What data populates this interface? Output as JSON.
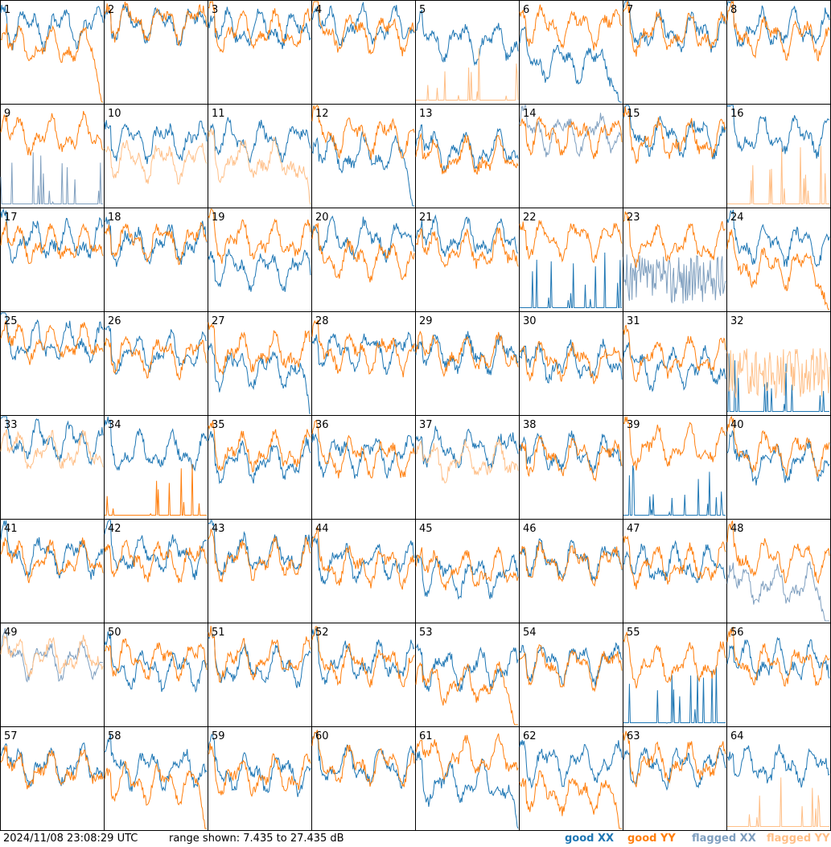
{
  "chart_data": {
    "type": "line",
    "layout": "8x8 small multiples",
    "ylim": [
      7.435,
      27.435
    ],
    "y_unit": "dB",
    "panel_labels": [
      "1",
      "2",
      "3",
      "4",
      "5",
      "6",
      "7",
      "8",
      "9",
      "10",
      "11",
      "12",
      "13",
      "14",
      "15",
      "16",
      "17",
      "18",
      "19",
      "20",
      "21",
      "22",
      "23",
      "24",
      "25",
      "26",
      "27",
      "28",
      "29",
      "30",
      "31",
      "32",
      "33",
      "34",
      "35",
      "36",
      "37",
      "38",
      "39",
      "40",
      "41",
      "42",
      "43",
      "44",
      "45",
      "46",
      "47",
      "48",
      "49",
      "50",
      "51",
      "52",
      "53",
      "54",
      "55",
      "56",
      "57",
      "58",
      "59",
      "60",
      "61",
      "62",
      "63",
      "64"
    ],
    "series_styles": {
      "good_xx": {
        "label": "good XX",
        "color": "#1f77b4"
      },
      "good_yy": {
        "label": "good YY",
        "color": "#ff7f0e"
      },
      "flagged_xx": {
        "label": "flagged XX",
        "color": "#7f9fbf"
      },
      "flagged_yy": {
        "label": "flagged YY",
        "color": "#ffbf87"
      }
    },
    "panels": [
      {
        "xx": "good",
        "yy": "good",
        "xx_level": 0.75,
        "yy_level": 0.55,
        "yy_shape": "dropoff"
      },
      {
        "xx": "good",
        "yy": "good",
        "xx_level": 0.78,
        "yy_level": 0.8
      },
      {
        "xx": "good",
        "yy": "good",
        "xx_level": 0.72,
        "yy_level": 0.7
      },
      {
        "xx": "good",
        "yy": "good",
        "xx_level": 0.75,
        "yy_level": 0.7
      },
      {
        "xx": "good",
        "yy": "flagged",
        "xx_level": 0.6,
        "yy_level": 0.1,
        "yy_shape": "spikes"
      },
      {
        "xx": "good",
        "yy": "good",
        "xx_level": 0.4,
        "yy_level": 0.75,
        "xx_shape": "dropoff"
      },
      {
        "xx": "good",
        "yy": "good",
        "xx_level": 0.7,
        "yy_level": 0.68
      },
      {
        "xx": "good",
        "yy": "good",
        "xx_level": 0.72,
        "yy_level": 0.65
      },
      {
        "xx": "flagged",
        "yy": "good",
        "xx_level": 0.15,
        "yy_level": 0.7,
        "xx_shape": "spikes"
      },
      {
        "xx": "good",
        "yy": "flagged",
        "xx_level": 0.65,
        "yy_level": 0.45
      },
      {
        "xx": "good",
        "yy": "flagged",
        "xx_level": 0.65,
        "yy_level": 0.45,
        "yy_shape": "dropoff"
      },
      {
        "xx": "good",
        "yy": "good",
        "xx_level": 0.5,
        "yy_level": 0.7,
        "xx_shape": "dropoff"
      },
      {
        "xx": "good",
        "yy": "good",
        "xx_level": 0.55,
        "yy_level": 0.48
      },
      {
        "xx": "flagged",
        "yy": "good",
        "xx_level": 0.72,
        "yy_level": 0.7
      },
      {
        "xx": "good",
        "yy": "good",
        "xx_level": 0.7,
        "yy_level": 0.65
      },
      {
        "xx": "good",
        "yy": "flagged",
        "xx_level": 0.7,
        "yy_level": 0.1,
        "yy_shape": "spikes"
      },
      {
        "xx": "good",
        "yy": "good",
        "xx_level": 0.68,
        "yy_level": 0.65
      },
      {
        "xx": "good",
        "yy": "good",
        "xx_level": 0.65,
        "yy_level": 0.68
      },
      {
        "xx": "good",
        "yy": "good",
        "xx_level": 0.4,
        "yy_level": 0.68
      },
      {
        "xx": "good",
        "yy": "good",
        "xx_level": 0.7,
        "yy_level": 0.5
      },
      {
        "xx": "good",
        "yy": "good",
        "xx_level": 0.7,
        "yy_level": 0.58
      },
      {
        "xx": "good",
        "yy": "good",
        "xx_level": 0.05,
        "yy_level": 0.7,
        "xx_shape": "spikes"
      },
      {
        "xx": "flagged",
        "yy": "good",
        "xx_level": 0.3,
        "yy_level": 0.65,
        "xx_shape": "noise"
      },
      {
        "xx": "good",
        "yy": "good",
        "xx_level": 0.65,
        "yy_level": 0.42,
        "yy_shape": "dropoff"
      },
      {
        "xx": "good",
        "yy": "good",
        "xx_level": 0.7,
        "yy_level": 0.7
      },
      {
        "xx": "good",
        "yy": "good",
        "xx_level": 0.6,
        "yy_level": 0.58
      },
      {
        "xx": "good",
        "yy": "good",
        "xx_level": 0.45,
        "yy_level": 0.6,
        "xx_shape": "dropoff"
      },
      {
        "xx": "good",
        "yy": "good",
        "xx_level": 0.62,
        "yy_level": 0.6
      },
      {
        "xx": "good",
        "yy": "good",
        "xx_level": 0.58,
        "yy_level": 0.58
      },
      {
        "xx": "good",
        "yy": "good",
        "xx_level": 0.5,
        "yy_level": 0.52
      },
      {
        "xx": "good",
        "yy": "good",
        "xx_level": 0.45,
        "yy_level": 0.55
      },
      {
        "xx": "good",
        "yy": "flagged",
        "xx_level": 0.05,
        "yy_level": 0.4,
        "xx_shape": "spikes",
        "yy_shape": "noise"
      },
      {
        "xx": "good",
        "yy": "flagged",
        "xx_level": 0.75,
        "yy_level": 0.65
      },
      {
        "xx": "good",
        "yy": "good",
        "xx_level": 0.65,
        "yy_level": 0.1,
        "yy_shape": "spikes"
      },
      {
        "xx": "good",
        "yy": "good",
        "xx_level": 0.55,
        "yy_level": 0.65
      },
      {
        "xx": "good",
        "yy": "good",
        "xx_level": 0.62,
        "yy_level": 0.6
      },
      {
        "xx": "good",
        "yy": "flagged",
        "xx_level": 0.68,
        "yy_level": 0.55
      },
      {
        "xx": "good",
        "yy": "good",
        "xx_level": 0.62,
        "yy_level": 0.6
      },
      {
        "xx": "good",
        "yy": "good",
        "xx_level": 0.05,
        "yy_level": 0.7,
        "xx_shape": "spikes"
      },
      {
        "xx": "good",
        "yy": "good",
        "xx_level": 0.55,
        "yy_level": 0.65
      },
      {
        "xx": "good",
        "yy": "good",
        "xx_level": 0.65,
        "yy_level": 0.6
      },
      {
        "xx": "good",
        "yy": "good",
        "xx_level": 0.65,
        "yy_level": 0.6
      },
      {
        "xx": "good",
        "yy": "good",
        "xx_level": 0.65,
        "yy_level": 0.6
      },
      {
        "xx": "good",
        "yy": "good",
        "xx_level": 0.58,
        "yy_level": 0.55
      },
      {
        "xx": "good",
        "yy": "good",
        "xx_level": 0.45,
        "yy_level": 0.5
      },
      {
        "xx": "good",
        "yy": "good",
        "xx_level": 0.6,
        "yy_level": 0.58
      },
      {
        "xx": "good",
        "yy": "good",
        "xx_level": 0.55,
        "yy_level": 0.55
      },
      {
        "xx": "flagged",
        "yy": "good",
        "xx_level": 0.35,
        "yy_level": 0.62,
        "xx_shape": "dropoff"
      },
      {
        "xx": "flagged",
        "yy": "flagged",
        "xx_level": 0.65,
        "yy_level": 0.68
      },
      {
        "xx": "good",
        "yy": "good",
        "xx_level": 0.55,
        "yy_level": 0.65
      },
      {
        "xx": "good",
        "yy": "good",
        "xx_level": 0.58,
        "yy_level": 0.65
      },
      {
        "xx": "good",
        "yy": "good",
        "xx_level": 0.62,
        "yy_level": 0.6
      },
      {
        "xx": "good",
        "yy": "good",
        "xx_level": 0.55,
        "yy_level": 0.4,
        "yy_shape": "dropoff"
      },
      {
        "xx": "good",
        "yy": "good",
        "xx_level": 0.62,
        "yy_level": 0.58
      },
      {
        "xx": "good",
        "yy": "good",
        "xx_level": 0.1,
        "yy_level": 0.6,
        "xx_shape": "spikes"
      },
      {
        "xx": "good",
        "yy": "good",
        "xx_level": 0.62,
        "yy_level": 0.6
      },
      {
        "xx": "good",
        "yy": "good",
        "xx_level": 0.62,
        "yy_level": 0.58
      },
      {
        "xx": "good",
        "yy": "good",
        "xx_level": 0.6,
        "yy_level": 0.45,
        "yy_shape": "dropoff"
      },
      {
        "xx": "good",
        "yy": "good",
        "xx_level": 0.55,
        "yy_level": 0.52
      },
      {
        "xx": "good",
        "yy": "good",
        "xx_level": 0.62,
        "yy_level": 0.62
      },
      {
        "xx": "good",
        "yy": "good",
        "xx_level": 0.45,
        "yy_level": 0.7,
        "xx_shape": "dropoff"
      },
      {
        "xx": "good",
        "yy": "good",
        "xx_level": 0.65,
        "yy_level": 0.35,
        "yy_shape": "dropoff"
      },
      {
        "xx": "good",
        "yy": "good",
        "xx_level": 0.62,
        "yy_level": 0.65
      },
      {
        "xx": "good",
        "yy": "flagged",
        "xx_level": 0.62,
        "yy_level": 0.1,
        "yy_shape": "spikes"
      }
    ]
  },
  "footer": {
    "timestamp": "2024/11/08 23:08:29 UTC",
    "range": "range shown: 7.435 to 27.435 dB",
    "legend": {
      "good_xx": "good XX",
      "good_yy": "good YY",
      "flagged_xx": "flagged XX",
      "flagged_yy": "flagged YY"
    }
  }
}
